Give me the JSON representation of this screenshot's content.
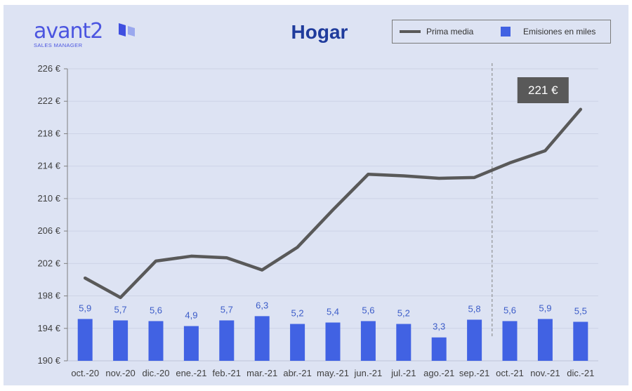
{
  "logo": {
    "word": "avant2",
    "sub": "SALES MANAGER",
    "icon": "avant2-logo-mark"
  },
  "colors": {
    "line": "#595959",
    "bar": "#4162e3",
    "label": "#3c5cc8",
    "background": "#dde3f3",
    "title": "#1f3b9c"
  },
  "chart_data": {
    "type": "bar+line",
    "title": "Hogar",
    "categories": [
      "oct.-20",
      "nov.-20",
      "dic.-20",
      "ene.-21",
      "feb.-21",
      "mar.-21",
      "abr.-21",
      "may.-21",
      "jun.-21",
      "jul.-21",
      "ago.-21",
      "sep.-21",
      "oct.-21",
      "nov.-21",
      "dic.-21"
    ],
    "series": [
      {
        "name": "Prima media",
        "kind": "line",
        "values": [
          200.2,
          197.8,
          202.3,
          202.9,
          202.7,
          201.2,
          204.0,
          208.6,
          213.0,
          212.8,
          212.5,
          212.6,
          214.4,
          215.9,
          221.0
        ]
      },
      {
        "name": "Emisiones en miles",
        "kind": "bar",
        "values": [
          5.9,
          5.7,
          5.6,
          4.9,
          5.7,
          6.3,
          5.2,
          5.4,
          5.6,
          5.2,
          3.3,
          5.8,
          5.6,
          5.9,
          5.5
        ],
        "labels": [
          "5,9",
          "5,7",
          "5,6",
          "4,9",
          "5,7",
          "6,3",
          "5,2",
          "5,4",
          "5,6",
          "5,2",
          "3,3",
          "5,8",
          "5,6",
          "5,9",
          "5,5"
        ]
      }
    ],
    "y_ticks": [
      "190 €",
      "194 €",
      "198 €",
      "202 €",
      "206 €",
      "210 €",
      "214 €",
      "218 €",
      "222 €",
      "226 €"
    ],
    "ylim": [
      190,
      226
    ],
    "legend_position": "top-right",
    "grid": true,
    "callout": {
      "text": "221 €",
      "category": "dic.-21"
    },
    "divider_after": "sep.-21"
  }
}
